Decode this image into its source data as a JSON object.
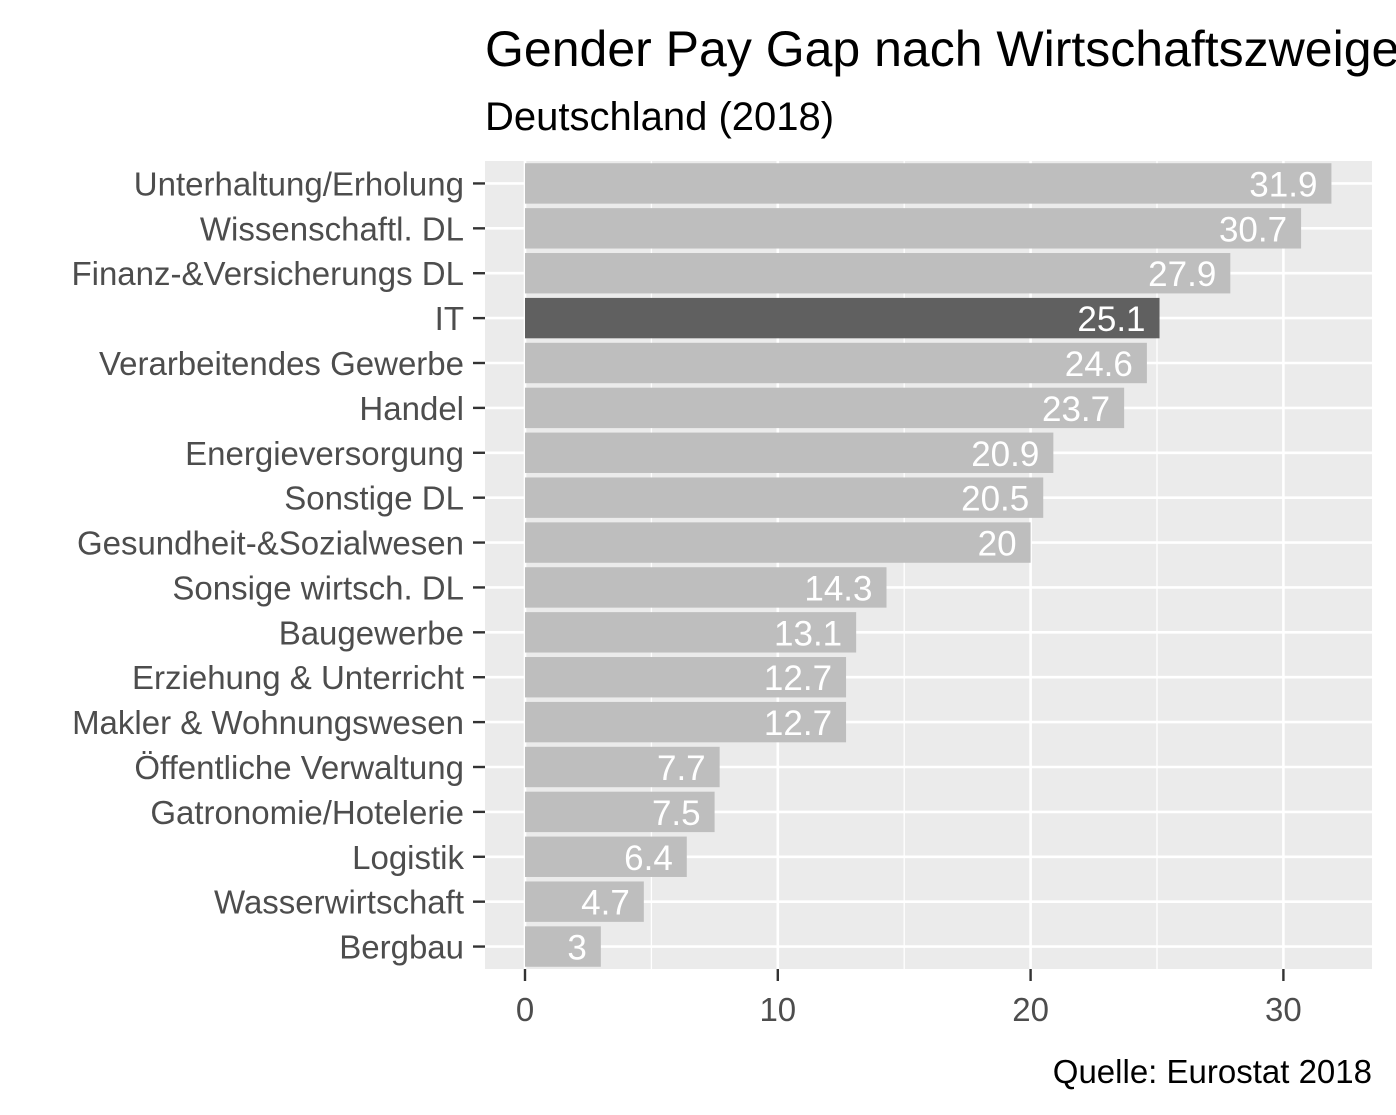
{
  "chart_data": {
    "type": "bar",
    "orientation": "horizontal",
    "title": "Gender Pay Gap nach Wirtschaftszweigen",
    "subtitle": "Deutschland (2018)",
    "caption": "Quelle: Eurostat 2018",
    "xlabel": "",
    "ylabel": "",
    "xlim": [
      -1.6,
      33.5
    ],
    "x_ticks": [
      0,
      10,
      20,
      30
    ],
    "grid": true,
    "legend": "none",
    "categories": [
      "Unterhaltung/Erholung",
      "Wissenschaftl. DL",
      "Finanz-&Versicherungs DL",
      "IT",
      "Verarbeitendes Gewerbe",
      "Handel",
      "Energieversorgung",
      "Sonstige DL",
      "Gesundheit-&Sozialwesen",
      "Sonsige wirtsch. DL",
      "Baugewerbe",
      "Erziehung & Unterricht",
      "Makler & Wohnungswesen",
      "Öffentliche Verwaltung",
      "Gatronomie/Hotelerie",
      "Logistik",
      "Wasserwirtschaft",
      "Bergbau"
    ],
    "values": [
      31.9,
      30.7,
      27.9,
      25.1,
      24.6,
      23.7,
      20.9,
      20.5,
      20,
      14.3,
      13.1,
      12.7,
      12.7,
      7.7,
      7.5,
      6.4,
      4.7,
      3
    ],
    "value_labels": [
      "31.9",
      "30.7",
      "27.9",
      "25.1",
      "24.6",
      "23.7",
      "20.9",
      "20.5",
      "20",
      "14.3",
      "13.1",
      "12.7",
      "12.7",
      "7.7",
      "7.5",
      "6.4",
      "4.7",
      "3"
    ],
    "highlight": "IT",
    "colors": {
      "bar": "#bebebe",
      "highlight_bar": "#606060",
      "panel": "#ebebeb",
      "grid": "#ffffff",
      "bar_label": "#ffffff",
      "axis_text": "#4d4d4d",
      "title": "#000000"
    }
  }
}
